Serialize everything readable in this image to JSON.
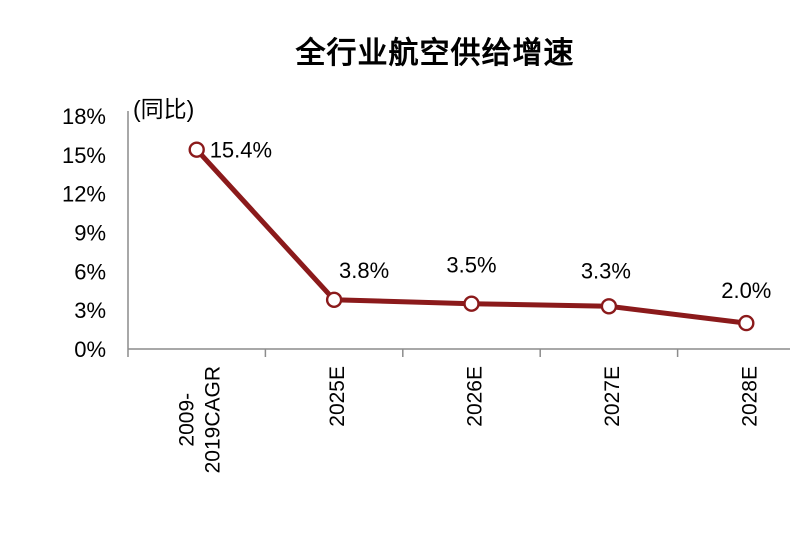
{
  "title": "全行业航空供给增速",
  "chart_data": {
    "type": "line",
    "title": "全行业航空供给增速",
    "subtitle": "(同比)",
    "categories": [
      "2009-\n2019CAGR",
      "2025E",
      "2026E",
      "2027E",
      "2028E"
    ],
    "series": [
      {
        "name": "全行业航空供给增速",
        "values": [
          15.4,
          3.8,
          3.5,
          3.3,
          2.0
        ]
      }
    ],
    "data_labels": [
      "15.4%",
      "3.8%",
      "3.5%",
      "3.3%",
      "2.0%"
    ],
    "y_ticks": [
      "0%",
      "3%",
      "6%",
      "9%",
      "12%",
      "15%",
      "18%"
    ],
    "ylim": [
      0,
      18
    ],
    "y_tick_step": 3,
    "xlabel": "",
    "ylabel": "",
    "legend_position": "none",
    "grid": "off",
    "colors": {
      "line": "#8B1A1B",
      "marker_fill": "#FFFFFF",
      "marker_border": "#8B1A1B",
      "axis": "#8C8C8C",
      "text": "#000000",
      "background": "#FFFFFF"
    }
  }
}
